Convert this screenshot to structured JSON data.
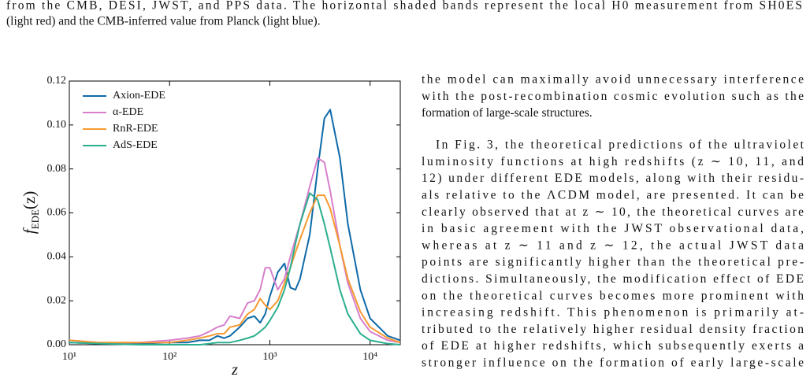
{
  "caption": {
    "lines": [
      "from the CMB, DESI, JWST, and PPS data. The horizontal shaded bands represent the local H0 measurement from SH0ES",
      "(light red) and the CMB-inferred value from Planck (light blue)."
    ]
  },
  "body": {
    "paragraphs": [
      [
        "the model can maximally avoid unnecessary interference",
        "with the post-recombination cosmic evolution such as the",
        "formation of large-scale structures."
      ],
      [
        "In Fig. 3, the theoretical predictions of the ultraviolet",
        "luminosity functions at high redshifts (z ∼ 10, 11, and",
        "12) under different EDE models, along with their residu-",
        "als relative to the ΛCDM model, are presented. It can be",
        "clearly observed that at z ∼ 10, the theoretical curves are",
        "in basic agreement with the JWST observational data,",
        "whereas at z ∼ 11 and z ∼ 12, the actual JWST data",
        "points are significantly higher than the theoretical pre-",
        "dictions. Simultaneously, the modification effect of EDE",
        "on the theoretical curves becomes more prominent with",
        "increasing redshift. This phenomenon is primarily at-",
        "tributed to the relatively higher residual density fraction",
        "of EDE at higher redshifts, which subsequently exerts a",
        "stronger influence on the formation of early large-scale"
      ]
    ]
  },
  "chart_data": {
    "type": "line",
    "xlabel": "z",
    "ylabel": [
      "f",
      "EDE",
      "(z)"
    ],
    "xscale": "log",
    "legend": "upper-left",
    "grid": false,
    "xlim": [
      10,
      20000
    ],
    "ylim": [
      0,
      0.12
    ],
    "xticks": [
      {
        "value": 10,
        "label": "10¹"
      },
      {
        "value": 100,
        "label": "10²"
      },
      {
        "value": 1000,
        "label": "10³"
      },
      {
        "value": 10000,
        "label": "10⁴"
      }
    ],
    "yticks": [
      {
        "value": 0,
        "label": "0.00"
      },
      0.02,
      0.04,
      0.06,
      0.08,
      {
        "value": 0.1,
        "label": "0.10"
      },
      0.12
    ],
    "x": [
      10,
      20,
      50,
      100,
      150,
      200,
      250,
      300,
      350,
      400,
      500,
      600,
      700,
      800,
      900,
      1000,
      1200,
      1400,
      1600,
      1800,
      2000,
      2500,
      3000,
      3500,
      4000,
      5000,
      6000,
      8000,
      10000,
      15000,
      20000
    ],
    "series": [
      {
        "name": "Axion-EDE",
        "color": "#0e6aa8",
        "values": [
          0.001,
          0.0005,
          0.0005,
          0.001,
          0.001,
          0.002,
          0.002,
          0.004,
          0.003,
          0.004,
          0.008,
          0.012,
          0.013,
          0.01,
          0.014,
          0.022,
          0.033,
          0.037,
          0.026,
          0.025,
          0.03,
          0.05,
          0.08,
          0.103,
          0.107,
          0.085,
          0.055,
          0.025,
          0.012,
          0.004,
          0.002
        ]
      },
      {
        "name": "α-EDE",
        "color": "#d77fcc",
        "values": [
          0.002,
          0.001,
          0.001,
          0.002,
          0.003,
          0.004,
          0.006,
          0.008,
          0.009,
          0.013,
          0.012,
          0.019,
          0.02,
          0.025,
          0.035,
          0.035,
          0.025,
          0.03,
          0.04,
          0.048,
          0.055,
          0.072,
          0.085,
          0.083,
          0.07,
          0.045,
          0.028,
          0.012,
          0.006,
          0.002,
          0.001
        ]
      },
      {
        "name": "RnR-EDE",
        "color": "#f59a32",
        "values": [
          0.002,
          0.001,
          0.001,
          0.001,
          0.002,
          0.003,
          0.004,
          0.005,
          0.005,
          0.008,
          0.009,
          0.014,
          0.016,
          0.021,
          0.018,
          0.016,
          0.02,
          0.028,
          0.035,
          0.042,
          0.048,
          0.06,
          0.068,
          0.068,
          0.062,
          0.045,
          0.03,
          0.015,
          0.008,
          0.003,
          0.001
        ]
      },
      {
        "name": "AdS-EDE",
        "color": "#2bae8e",
        "values": [
          0.001,
          0.0005,
          0,
          0,
          0,
          0,
          0.0005,
          0.001,
          0.001,
          0.001,
          0.002,
          0.003,
          0.004,
          0.006,
          0.008,
          0.011,
          0.017,
          0.025,
          0.035,
          0.046,
          0.055,
          0.069,
          0.066,
          0.055,
          0.044,
          0.025,
          0.014,
          0.005,
          0.002,
          0.0005,
          0
        ]
      }
    ]
  }
}
